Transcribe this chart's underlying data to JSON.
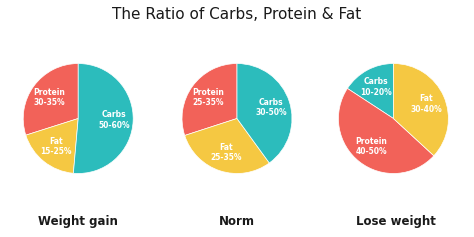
{
  "title": "The Ratio of Carbs, Protein & Fat",
  "title_fontsize": 11,
  "background_color": "#ffffff",
  "charts": [
    {
      "label": "Weight gain",
      "slices": [
        "Protein\n30-35%",
        "Fat\n15-25%",
        "Carbs\n50-60%"
      ],
      "values": [
        32,
        20,
        55
      ],
      "colors": [
        "#F26259",
        "#F5C842",
        "#2CBCBC"
      ],
      "startangle": 90
    },
    {
      "label": "Norm",
      "slices": [
        "Protein\n25-35%",
        "Fat\n25-35%",
        "Carbs\n30-50%"
      ],
      "values": [
        30,
        30,
        40
      ],
      "colors": [
        "#F26259",
        "#F5C842",
        "#2CBCBC"
      ],
      "startangle": 90
    },
    {
      "label": "Lose weight",
      "slices": [
        "Carbs\n10-20%",
        "Protein\n40-50%",
        "Fat\n30-40%"
      ],
      "values": [
        15,
        45,
        35
      ],
      "colors": [
        "#2CBCBC",
        "#F26259",
        "#F5C842"
      ],
      "startangle": 90
    }
  ],
  "text_color": "#ffffff",
  "label_fontsize": 5.5,
  "sublabel_fontsize": 8.5
}
